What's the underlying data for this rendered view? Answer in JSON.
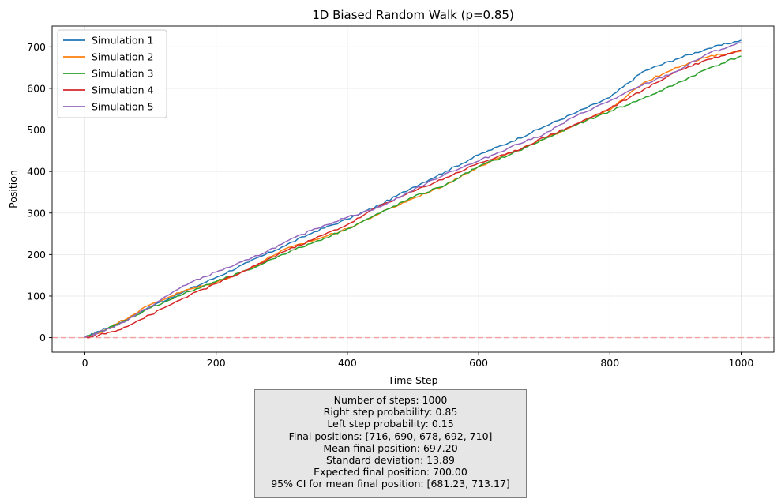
{
  "chart_data": {
    "type": "line",
    "title": "1D Biased Random Walk (p=0.85)",
    "xlabel": "Time Step",
    "ylabel": "Position",
    "xlim": [
      -50,
      1050
    ],
    "ylim": [
      -35,
      750
    ],
    "xticks": [
      0,
      200,
      400,
      600,
      800,
      1000
    ],
    "yticks": [
      0,
      100,
      200,
      300,
      400,
      500,
      600,
      700
    ],
    "grid": true,
    "legend": "top-left",
    "reference_line": {
      "y": 0,
      "color": "#f4a0a0",
      "style": "dashed"
    },
    "series": [
      {
        "name": "Simulation 1",
        "color": "#1f77b4",
        "x": [
          0,
          20,
          50,
          100,
          150,
          200,
          250,
          300,
          350,
          400,
          450,
          500,
          550,
          600,
          650,
          700,
          750,
          800,
          850,
          900,
          950,
          1000
        ],
        "y": [
          0,
          15,
          33,
          75,
          110,
          145,
          182,
          218,
          255,
          285,
          320,
          362,
          400,
          440,
          472,
          508,
          543,
          578,
          640,
          670,
          696,
          716
        ]
      },
      {
        "name": "Simulation 2",
        "color": "#ff7f0e",
        "x": [
          0,
          20,
          50,
          100,
          150,
          200,
          250,
          300,
          350,
          400,
          450,
          500,
          550,
          600,
          650,
          700,
          750,
          800,
          850,
          900,
          950,
          1000
        ],
        "y": [
          0,
          10,
          35,
          80,
          112,
          133,
          165,
          210,
          235,
          262,
          300,
          335,
          368,
          412,
          445,
          478,
          515,
          548,
          612,
          650,
          676,
          690
        ]
      },
      {
        "name": "Simulation 3",
        "color": "#2ca02c",
        "x": [
          0,
          20,
          50,
          100,
          150,
          200,
          250,
          300,
          350,
          400,
          450,
          500,
          550,
          600,
          650,
          700,
          750,
          800,
          850,
          900,
          950,
          1000
        ],
        "y": [
          0,
          12,
          32,
          72,
          105,
          135,
          163,
          200,
          230,
          262,
          300,
          338,
          368,
          412,
          442,
          478,
          513,
          545,
          575,
          610,
          648,
          678
        ]
      },
      {
        "name": "Simulation 4",
        "color": "#d62728",
        "x": [
          0,
          20,
          50,
          100,
          150,
          200,
          250,
          300,
          350,
          400,
          450,
          500,
          550,
          600,
          650,
          700,
          750,
          800,
          850,
          900,
          950,
          1000
        ],
        "y": [
          0,
          5,
          18,
          55,
          95,
          130,
          165,
          205,
          238,
          272,
          318,
          352,
          385,
          420,
          445,
          482,
          515,
          552,
          595,
          640,
          670,
          692
        ]
      },
      {
        "name": "Simulation 5",
        "color": "#9467bd",
        "x": [
          0,
          20,
          50,
          100,
          150,
          200,
          250,
          300,
          350,
          400,
          450,
          500,
          550,
          600,
          650,
          700,
          750,
          800,
          850,
          900,
          950,
          1000
        ],
        "y": [
          0,
          12,
          30,
          75,
          125,
          158,
          188,
          225,
          262,
          290,
          315,
          355,
          395,
          425,
          460,
          490,
          535,
          570,
          608,
          640,
          684,
          710
        ]
      }
    ]
  },
  "stats": {
    "lines": [
      "Number of steps: 1000",
      "Right step probability: 0.85",
      "Left step probability: 0.15",
      "Final positions: [716, 690, 678, 692, 710]",
      "Mean final position: 697.20",
      "Standard deviation: 13.89",
      "Expected final position: 700.00",
      "95% CI for mean final position: [681.23, 713.17]"
    ]
  }
}
